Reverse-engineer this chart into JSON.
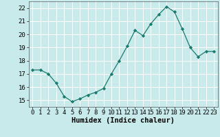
{
  "x": [
    0,
    1,
    2,
    3,
    4,
    5,
    6,
    7,
    8,
    9,
    10,
    11,
    12,
    13,
    14,
    15,
    16,
    17,
    18,
    19,
    20,
    21,
    22,
    23
  ],
  "y": [
    17.3,
    17.3,
    17.0,
    16.3,
    15.3,
    14.9,
    15.1,
    15.4,
    15.6,
    15.9,
    17.0,
    18.0,
    19.1,
    20.3,
    19.9,
    20.8,
    21.5,
    22.1,
    21.7,
    20.4,
    19.0,
    18.3,
    18.7,
    18.7
  ],
  "line_color": "#1a7a6e",
  "marker_color": "#1a7a6e",
  "bg_color": "#c8eaea",
  "grid_color": "#ffffff",
  "xlabel": "Humidex (Indice chaleur)",
  "xlim": [
    -0.5,
    23.5
  ],
  "ylim": [
    14.5,
    22.5
  ],
  "yticks": [
    15,
    16,
    17,
    18,
    19,
    20,
    21,
    22
  ],
  "xticks": [
    0,
    1,
    2,
    3,
    4,
    5,
    6,
    7,
    8,
    9,
    10,
    11,
    12,
    13,
    14,
    15,
    16,
    17,
    18,
    19,
    20,
    21,
    22,
    23
  ],
  "tick_fontsize": 6.5,
  "label_fontsize": 7.5
}
